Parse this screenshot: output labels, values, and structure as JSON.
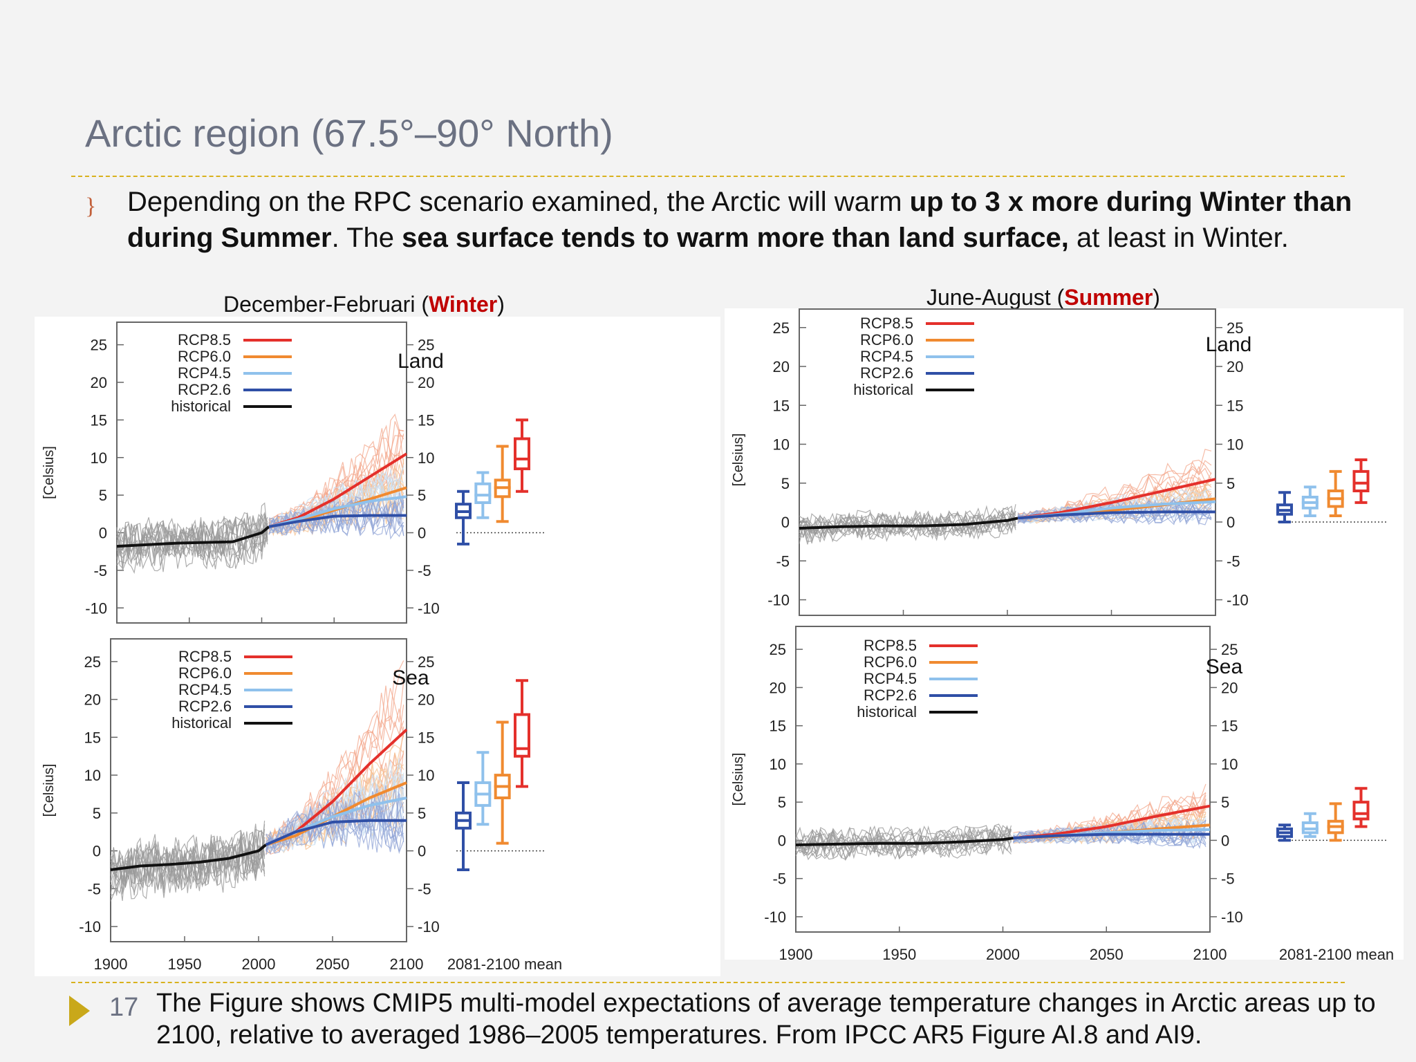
{
  "slide": {
    "title": "Arctic region (67.5°–90° North)",
    "bullet_marker": "}",
    "bullet": {
      "t1": "Depending on the RPC scenario examined, the Arctic will warm ",
      "b1": "up to 3 x more during Winter than during Summer",
      "t2": ".  The ",
      "b2": "sea surface tends to warm more than land surface,",
      "t3": " at least in Winter."
    },
    "footer_number": "17",
    "footer_text": "The Figure shows CMIP5 multi-model expectations of average temperature changes in Arctic areas up to 2100, relative to averaged 1986–2005 temperatures. From IPCC AR5 Figure AI.8 and AI9.",
    "accent_color": "#d8b11c"
  },
  "figures": {
    "winter": {
      "prefix": "December-Februari  (",
      "season": "Winter",
      "suffix": ")"
    },
    "summer": {
      "prefix": "June-August (",
      "season": "Summer",
      "suffix": ")"
    }
  },
  "legend": [
    {
      "name": "RCP8.5",
      "color": "#e4302b"
    },
    {
      "name": "RCP6.0",
      "color": "#f08a30"
    },
    {
      "name": "RCP4.5",
      "color": "#8fc1ec"
    },
    {
      "name": "RCP2.6",
      "color": "#2f4fa6"
    },
    {
      "name": "historical",
      "color": "#111111"
    }
  ],
  "chart_data": [
    {
      "type": "line",
      "panel": "Land",
      "season": "Winter",
      "ylabel": "[Celsius]",
      "x_ticks": [],
      "y_ticks": [
        25,
        20,
        15,
        10,
        5,
        0,
        -5,
        -10
      ],
      "xlim": [
        1900,
        2100
      ],
      "ylim": [
        -12,
        28
      ],
      "series": [
        {
          "name": "historical",
          "x": [
            1900,
            1920,
            1940,
            1960,
            1980,
            2000,
            2005
          ],
          "y": [
            -1.8,
            -1.6,
            -1.4,
            -1.3,
            -1.2,
            0.0,
            0.8
          ]
        },
        {
          "name": "RCP8.5",
          "x": [
            2005,
            2025,
            2050,
            2075,
            2100
          ],
          "y": [
            0.8,
            2.0,
            4.5,
            7.5,
            10.5
          ]
        },
        {
          "name": "RCP6.0",
          "x": [
            2005,
            2025,
            2050,
            2075,
            2100
          ],
          "y": [
            0.8,
            1.5,
            3.0,
            4.5,
            6.0
          ]
        },
        {
          "name": "RCP4.5",
          "x": [
            2005,
            2025,
            2050,
            2075,
            2100
          ],
          "y": [
            0.8,
            1.8,
            3.2,
            4.2,
            4.8
          ]
        },
        {
          "name": "RCP2.6",
          "x": [
            2005,
            2025,
            2050,
            2075,
            2100
          ],
          "y": [
            0.8,
            1.5,
            2.2,
            2.3,
            2.3
          ]
        }
      ],
      "box_xlabel": "",
      "boxes": [
        {
          "name": "RCP2.6",
          "min": -1.5,
          "q1": 2.0,
          "median": 2.8,
          "q3": 3.8,
          "max": 5.5
        },
        {
          "name": "RCP4.5",
          "min": 2.0,
          "q1": 4.0,
          "median": 5.0,
          "q3": 6.5,
          "max": 8.0
        },
        {
          "name": "RCP6.0",
          "min": 1.5,
          "q1": 4.8,
          "median": 6.0,
          "q3": 7.0,
          "max": 11.5
        },
        {
          "name": "RCP8.5",
          "min": 5.5,
          "q1": 8.5,
          "median": 9.8,
          "q3": 12.5,
          "max": 15.0
        }
      ]
    },
    {
      "type": "line",
      "panel": "Sea",
      "season": "Winter",
      "ylabel": "[Celsius]",
      "x_ticks": [
        1900,
        1950,
        2000,
        2050,
        2100
      ],
      "y_ticks": [
        25,
        20,
        15,
        10,
        5,
        0,
        -5,
        -10
      ],
      "xlim": [
        1900,
        2100
      ],
      "ylim": [
        -12,
        28
      ],
      "series": [
        {
          "name": "historical",
          "x": [
            1900,
            1920,
            1940,
            1960,
            1980,
            2000,
            2005
          ],
          "y": [
            -2.5,
            -2.0,
            -1.8,
            -1.5,
            -1.0,
            0.0,
            0.8
          ]
        },
        {
          "name": "RCP8.5",
          "x": [
            2005,
            2025,
            2050,
            2075,
            2100
          ],
          "y": [
            0.8,
            2.5,
            6.5,
            11.5,
            16.0
          ]
        },
        {
          "name": "RCP6.0",
          "x": [
            2005,
            2025,
            2050,
            2075,
            2100
          ],
          "y": [
            0.8,
            2.0,
            4.5,
            7.0,
            9.0
          ]
        },
        {
          "name": "RCP4.5",
          "x": [
            2005,
            2025,
            2050,
            2075,
            2100
          ],
          "y": [
            0.8,
            2.5,
            4.5,
            6.0,
            7.0
          ]
        },
        {
          "name": "RCP2.6",
          "x": [
            2005,
            2025,
            2050,
            2075,
            2100
          ],
          "y": [
            0.8,
            2.5,
            3.8,
            4.0,
            4.0
          ]
        }
      ],
      "box_xlabel": "2081-2100 mean",
      "boxes": [
        {
          "name": "RCP2.6",
          "min": -2.5,
          "q1": 3.0,
          "median": 4.0,
          "q3": 5.0,
          "max": 9.0
        },
        {
          "name": "RCP4.5",
          "min": 3.5,
          "q1": 6.0,
          "median": 7.5,
          "q3": 9.0,
          "max": 13.0
        },
        {
          "name": "RCP6.0",
          "min": 1.0,
          "q1": 7.0,
          "median": 8.5,
          "q3": 10.0,
          "max": 17.0
        },
        {
          "name": "RCP8.5",
          "min": 8.5,
          "q1": 12.5,
          "median": 13.5,
          "q3": 18.0,
          "max": 22.5
        }
      ]
    },
    {
      "type": "line",
      "panel": "Land",
      "season": "Summer",
      "ylabel": "[Celsius]",
      "x_ticks": [],
      "y_ticks": [
        25,
        20,
        15,
        10,
        5,
        0,
        -5,
        -10
      ],
      "xlim": [
        1900,
        2100
      ],
      "ylim": [
        -12,
        28
      ],
      "series": [
        {
          "name": "historical",
          "x": [
            1900,
            1920,
            1940,
            1960,
            1980,
            2000,
            2005
          ],
          "y": [
            -0.8,
            -0.6,
            -0.5,
            -0.5,
            -0.3,
            0.2,
            0.5
          ]
        },
        {
          "name": "RCP8.5",
          "x": [
            2005,
            2025,
            2050,
            2075,
            2100
          ],
          "y": [
            0.5,
            1.2,
            2.5,
            4.0,
            5.5
          ]
        },
        {
          "name": "RCP6.0",
          "x": [
            2005,
            2025,
            2050,
            2075,
            2100
          ],
          "y": [
            0.5,
            0.9,
            1.5,
            2.2,
            3.0
          ]
        },
        {
          "name": "RCP4.5",
          "x": [
            2005,
            2025,
            2050,
            2075,
            2100
          ],
          "y": [
            0.5,
            1.0,
            1.8,
            2.3,
            2.6
          ]
        },
        {
          "name": "RCP2.6",
          "x": [
            2005,
            2025,
            2050,
            2075,
            2100
          ],
          "y": [
            0.5,
            0.9,
            1.2,
            1.3,
            1.3
          ]
        }
      ],
      "box_xlabel": "",
      "boxes": [
        {
          "name": "RCP2.6",
          "min": 0.0,
          "q1": 1.0,
          "median": 1.5,
          "q3": 2.2,
          "max": 3.8
        },
        {
          "name": "RCP4.5",
          "min": 0.8,
          "q1": 1.8,
          "median": 2.5,
          "q3": 3.2,
          "max": 4.5
        },
        {
          "name": "RCP6.0",
          "min": 0.8,
          "q1": 2.0,
          "median": 3.0,
          "q3": 4.0,
          "max": 6.5
        },
        {
          "name": "RCP8.5",
          "min": 2.5,
          "q1": 4.0,
          "median": 5.0,
          "q3": 6.5,
          "max": 8.0
        }
      ]
    },
    {
      "type": "line",
      "panel": "Sea",
      "season": "Summer",
      "ylabel": "[Celsius]",
      "x_ticks": [
        1900,
        1950,
        2000,
        2050,
        2100
      ],
      "y_ticks": [
        25,
        20,
        15,
        10,
        5,
        0,
        -5,
        -10
      ],
      "xlim": [
        1900,
        2100
      ],
      "ylim": [
        -12,
        28
      ],
      "series": [
        {
          "name": "historical",
          "x": [
            1900,
            1920,
            1940,
            1960,
            1980,
            2000,
            2005
          ],
          "y": [
            -0.6,
            -0.5,
            -0.4,
            -0.4,
            -0.2,
            0.1,
            0.3
          ]
        },
        {
          "name": "RCP8.5",
          "x": [
            2005,
            2025,
            2050,
            2075,
            2100
          ],
          "y": [
            0.3,
            0.8,
            1.8,
            3.2,
            4.5
          ]
        },
        {
          "name": "RCP6.0",
          "x": [
            2005,
            2025,
            2050,
            2075,
            2100
          ],
          "y": [
            0.3,
            0.5,
            1.0,
            1.5,
            2.0
          ]
        },
        {
          "name": "RCP4.5",
          "x": [
            2005,
            2025,
            2050,
            2075,
            2100
          ],
          "y": [
            0.3,
            0.6,
            1.0,
            1.3,
            1.4
          ]
        },
        {
          "name": "RCP2.6",
          "x": [
            2005,
            2025,
            2050,
            2075,
            2100
          ],
          "y": [
            0.3,
            0.6,
            0.8,
            0.8,
            0.8
          ]
        }
      ],
      "box_xlabel": "2081-2100 mean",
      "boxes": [
        {
          "name": "RCP2.6",
          "min": 0.0,
          "q1": 0.5,
          "median": 1.0,
          "q3": 1.5,
          "max": 2.0
        },
        {
          "name": "RCP4.5",
          "min": 0.5,
          "q1": 1.0,
          "median": 1.5,
          "q3": 2.3,
          "max": 3.5
        },
        {
          "name": "RCP6.0",
          "min": 0.0,
          "q1": 1.0,
          "median": 1.8,
          "q3": 2.5,
          "max": 4.8
        },
        {
          "name": "RCP8.5",
          "min": 1.8,
          "q1": 2.8,
          "median": 3.5,
          "q3": 5.0,
          "max": 6.8
        }
      ]
    }
  ]
}
